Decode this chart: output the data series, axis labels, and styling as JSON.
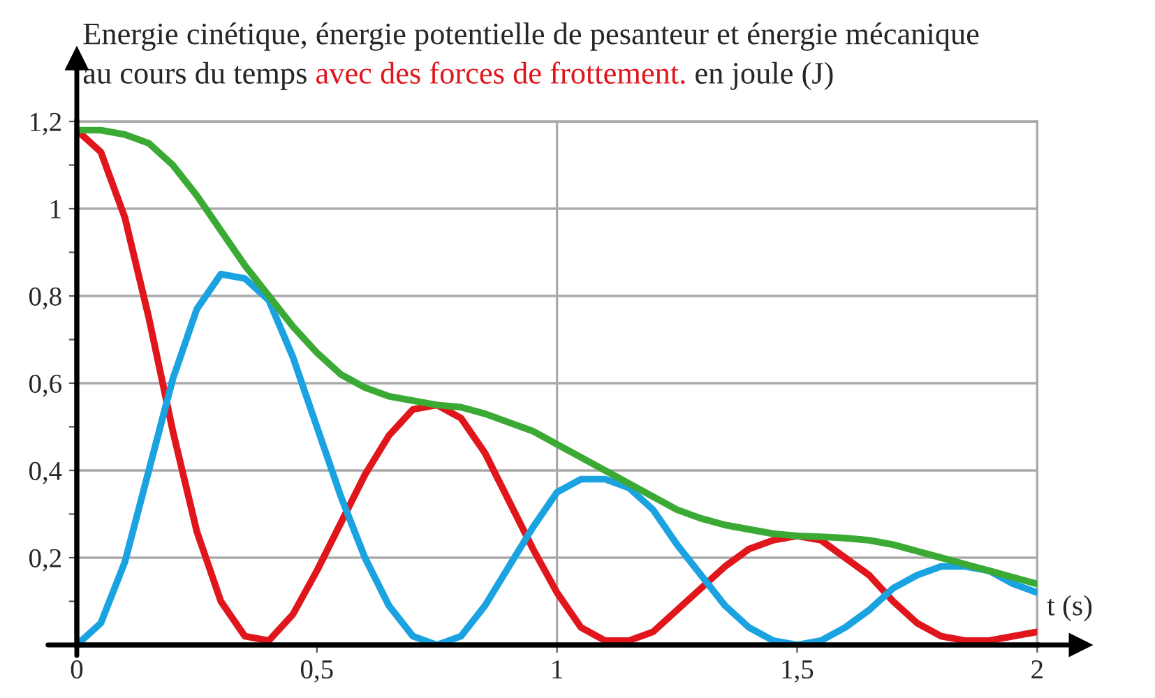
{
  "chart_data": {
    "type": "line",
    "title": "Energie cinétique, énergie potentielle de pesanteur et énergie mécanique\nau cours du temps",
    "subtitle": "avec des forces de frottement.",
    "ylabel": "en joule (J)",
    "xlabel": "t (s)",
    "x": [
      0,
      0.05,
      0.1,
      0.15,
      0.2,
      0.25,
      0.3,
      0.35,
      0.4,
      0.45,
      0.5,
      0.55,
      0.6,
      0.65,
      0.7,
      0.75,
      0.8,
      0.85,
      0.9,
      0.95,
      1.0,
      1.05,
      1.1,
      1.15,
      1.2,
      1.25,
      1.3,
      1.35,
      1.4,
      1.45,
      1.5,
      1.55,
      1.6,
      1.65,
      1.7,
      1.75,
      1.8,
      1.85,
      1.9,
      1.95,
      2.0
    ],
    "series": [
      {
        "color": "#e0161c",
        "values": [
          1.18,
          1.13,
          0.98,
          0.75,
          0.49,
          0.26,
          0.1,
          0.02,
          0.01,
          0.07,
          0.17,
          0.28,
          0.39,
          0.48,
          0.54,
          0.55,
          0.52,
          0.44,
          0.33,
          0.22,
          0.12,
          0.04,
          0.01,
          0.01,
          0.03,
          0.08,
          0.13,
          0.18,
          0.22,
          0.24,
          0.25,
          0.24,
          0.2,
          0.16,
          0.1,
          0.05,
          0.02,
          0.01,
          0.01,
          0.02,
          0.03
        ]
      },
      {
        "color": "#1aa3e0",
        "values": [
          0,
          0.05,
          0.19,
          0.4,
          0.61,
          0.77,
          0.85,
          0.84,
          0.79,
          0.66,
          0.5,
          0.34,
          0.2,
          0.09,
          0.02,
          0,
          0.02,
          0.09,
          0.18,
          0.27,
          0.35,
          0.38,
          0.38,
          0.36,
          0.31,
          0.23,
          0.16,
          0.09,
          0.04,
          0.01,
          0,
          0.01,
          0.04,
          0.08,
          0.13,
          0.16,
          0.18,
          0.18,
          0.17,
          0.14,
          0.12
        ]
      },
      {
        "color": "#3aaa35",
        "values": [
          1.18,
          1.18,
          1.17,
          1.15,
          1.1,
          1.03,
          0.95,
          0.87,
          0.8,
          0.73,
          0.67,
          0.62,
          0.59,
          0.57,
          0.56,
          0.55,
          0.545,
          0.53,
          0.51,
          0.49,
          0.46,
          0.43,
          0.4,
          0.37,
          0.34,
          0.31,
          0.29,
          0.275,
          0.265,
          0.255,
          0.25,
          0.248,
          0.245,
          0.24,
          0.23,
          0.215,
          0.2,
          0.185,
          0.17,
          0.155,
          0.14
        ]
      }
    ],
    "xlim": [
      0,
      2
    ],
    "ylim": [
      0,
      1.2
    ],
    "xticks": [
      0,
      {
        "value": 0.5,
        "label": "0,5"
      },
      1,
      {
        "value": 1.5,
        "label": "1,5"
      },
      2
    ],
    "yticks": [
      {
        "value": 0.1,
        "label": null
      },
      {
        "value": 0.2,
        "label": "0,2"
      },
      {
        "value": 0.3,
        "label": null
      },
      {
        "value": 0.4,
        "label": "0,4"
      },
      {
        "value": 0.5,
        "label": null
      },
      {
        "value": 0.6,
        "label": "0,6"
      },
      {
        "value": 0.7,
        "label": null
      },
      {
        "value": 0.8,
        "label": "0,8"
      },
      {
        "value": 0.9,
        "label": null
      },
      {
        "value": 1,
        "label": "1"
      },
      {
        "value": 1.1,
        "label": null
      },
      {
        "value": 1.2,
        "label": "1,2"
      }
    ],
    "ref_lines": [
      {
        "axis": "x",
        "value": 1,
        "label": null,
        "color": "#aaaaaa"
      }
    ],
    "grid": "y",
    "legend": false,
    "marker": "none",
    "line_style": "solid"
  }
}
